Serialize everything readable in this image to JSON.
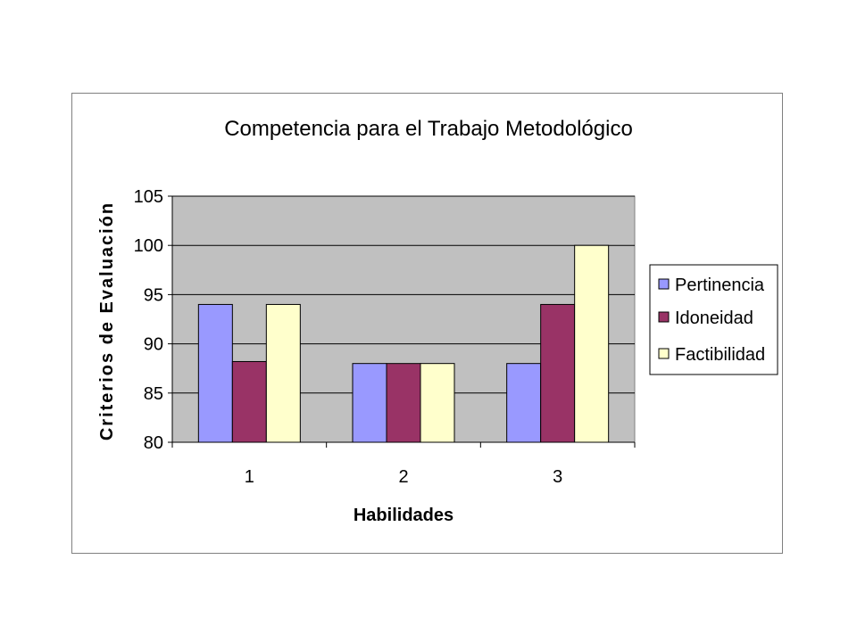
{
  "chart_data": {
    "type": "bar",
    "title": "Competencia para el Trabajo Metodológico",
    "xlabel": "Habilidades",
    "ylabel": "Criterios de Evaluación",
    "categories": [
      "1",
      "2",
      "3"
    ],
    "series": [
      {
        "name": "Pertinencia",
        "values": [
          94,
          88,
          88
        ],
        "color": "#9999ff"
      },
      {
        "name": "Idoneidad",
        "values": [
          88.2,
          88,
          94
        ],
        "color": "#993366"
      },
      {
        "name": "Factibilidad",
        "values": [
          94,
          88,
          100
        ],
        "color": "#ffffcc"
      }
    ],
    "ylim": [
      80,
      105
    ],
    "yticks": [
      "80",
      "85",
      "90",
      "95",
      "100",
      "105"
    ],
    "grid": true,
    "plot_background": "#c0c0c0",
    "legend_position": "right"
  }
}
